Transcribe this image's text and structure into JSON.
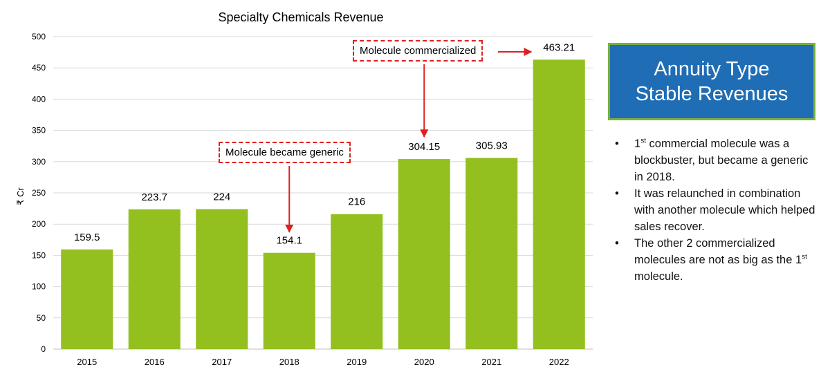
{
  "chart_data": {
    "type": "bar",
    "title": "Specialty Chemicals Revenue",
    "ylabel": "₹ Cr",
    "xlabel": "",
    "categories": [
      "2015",
      "2016",
      "2017",
      "2018",
      "2019",
      "2020",
      "2021",
      "2022"
    ],
    "values": [
      159.5,
      223.7,
      224,
      154.1,
      216,
      304.15,
      305.93,
      463.21
    ],
    "data_labels": [
      "159.5",
      "223.7",
      "224",
      "154.1",
      "216",
      "304.15",
      "305.93",
      "463.21"
    ],
    "ylim": [
      0,
      500
    ],
    "yticks": [
      0,
      50,
      100,
      150,
      200,
      250,
      300,
      350,
      400,
      450,
      500
    ],
    "grid": true,
    "bar_color": "#93c01f",
    "annotations": [
      {
        "text": "Molecule became generic",
        "target": "2018"
      },
      {
        "text": "Molecule commercialized",
        "target": "2020",
        "also_points_to": "2022"
      }
    ]
  },
  "callout": {
    "line1": "Annuity Type",
    "line2": "Stable Revenues",
    "bg_color": "#1f6db5",
    "border_color": "#7ab040"
  },
  "notes": [
    {
      "sup_num": "1",
      "sup": "st",
      "rest": " commercial molecule was a blockbuster, but became a generic in 2018."
    },
    {
      "text": "It was relaunched in combination with another molecule which helped sales recover."
    },
    {
      "pre": "The other 2 commercialized molecules are not as big as the ",
      "sup_num": "1",
      "sup": "st",
      "rest": " molecule."
    }
  ],
  "colors": {
    "annotation": "#e02020",
    "grid": "#d9d9d9"
  }
}
